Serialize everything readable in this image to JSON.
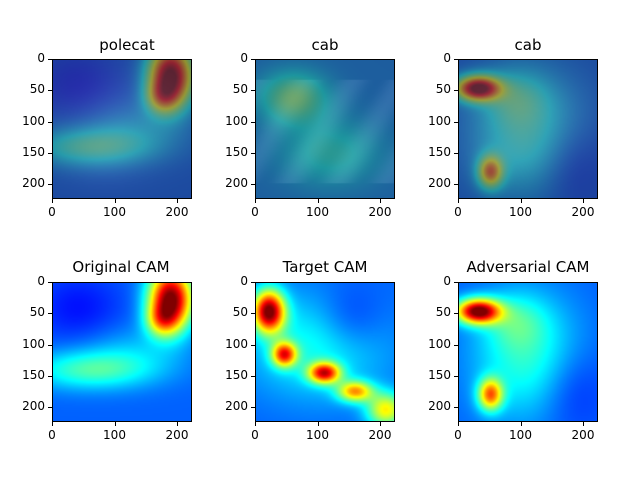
{
  "panels": [
    {
      "title": "polecat",
      "kind": "photo-overlay",
      "scene": "polecat"
    },
    {
      "title": "cab",
      "kind": "photo-overlay",
      "scene": "cab"
    },
    {
      "title": "cab",
      "kind": "photo-overlay",
      "scene": "polecat-adv"
    },
    {
      "title": "Original CAM",
      "kind": "heatmap",
      "scene": "orig"
    },
    {
      "title": "Target CAM",
      "kind": "heatmap",
      "scene": "target"
    },
    {
      "title": "Adversarial CAM",
      "kind": "heatmap",
      "scene": "adv"
    }
  ],
  "x_ticks": [
    "0",
    "100",
    "200"
  ],
  "y_ticks": [
    "0",
    "50",
    "100",
    "150",
    "200"
  ],
  "colormap": "jet"
}
